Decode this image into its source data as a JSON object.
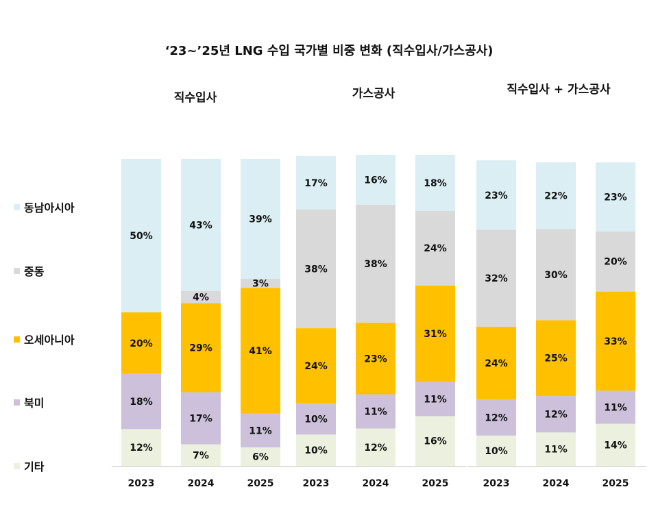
{
  "chart_data": {
    "type": "bar",
    "stacked": true,
    "normalized": true,
    "title": "‘23~’25년 LNG 수입 국가별 비중 변화 (직수입사/가스공사)",
    "categories": [
      "2023",
      "2024",
      "2025"
    ],
    "legend_position": "left",
    "grid": false,
    "series_meta": [
      {
        "name": "동남아시아",
        "color": "#DAEEF3"
      },
      {
        "name": "중동",
        "color": "#D9D9D9"
      },
      {
        "name": "오세아니아",
        "color": "#FFC000"
      },
      {
        "name": "북미",
        "color": "#CCC0DA"
      },
      {
        "name": "기타",
        "color": "#EBF1DE"
      }
    ],
    "groups": [
      {
        "title": "직수입사",
        "values": {
          "동남아시아": [
            50,
            43,
            39
          ],
          "중동": [
            null,
            4,
            3
          ],
          "오세아니아": [
            20,
            29,
            41
          ],
          "북미": [
            18,
            17,
            11
          ],
          "기타": [
            12,
            7,
            6
          ]
        },
        "labels": {
          "동남아시아": [
            "50%",
            "43%",
            "39%"
          ],
          "중동": [
            "",
            "4%",
            "3%"
          ],
          "오세아니아": [
            "20%",
            "29%",
            "41%"
          ],
          "북미": [
            "18%",
            "17%",
            "11%"
          ],
          "기타": [
            "12%",
            "7%",
            "6%"
          ]
        }
      },
      {
        "title": "가스공사",
        "values": {
          "동남아시아": [
            17,
            16,
            18
          ],
          "중동": [
            38,
            38,
            24
          ],
          "오세아니아": [
            24,
            23,
            31
          ],
          "북미": [
            10,
            11,
            11
          ],
          "기타": [
            10,
            12,
            16
          ]
        },
        "labels": {
          "동남아시아": [
            "17%",
            "16%",
            "18%"
          ],
          "중동": [
            "38%",
            "38%",
            "24%"
          ],
          "오세아니아": [
            "24%",
            "23%",
            "31%"
          ],
          "북미": [
            "10%",
            "11%",
            "11%"
          ],
          "기타": [
            "10%",
            "12%",
            "16%"
          ]
        }
      },
      {
        "title": "직수입사 + 가스공사",
        "values": {
          "동남아시아": [
            23,
            22,
            23
          ],
          "중동": [
            32,
            30,
            20
          ],
          "오세아니아": [
            24,
            25,
            33
          ],
          "북미": [
            12,
            12,
            11
          ],
          "기타": [
            10,
            11,
            14
          ]
        },
        "labels": {
          "동남아시아": [
            "23%",
            "22%",
            "23%"
          ],
          "중동": [
            "32%",
            "30%",
            "20%"
          ],
          "오세아니아": [
            "24%",
            "25%",
            "33%"
          ],
          "북미": [
            "12%",
            "12%",
            "11%"
          ],
          "기타": [
            "10%",
            "11%",
            "14%"
          ]
        }
      }
    ]
  }
}
